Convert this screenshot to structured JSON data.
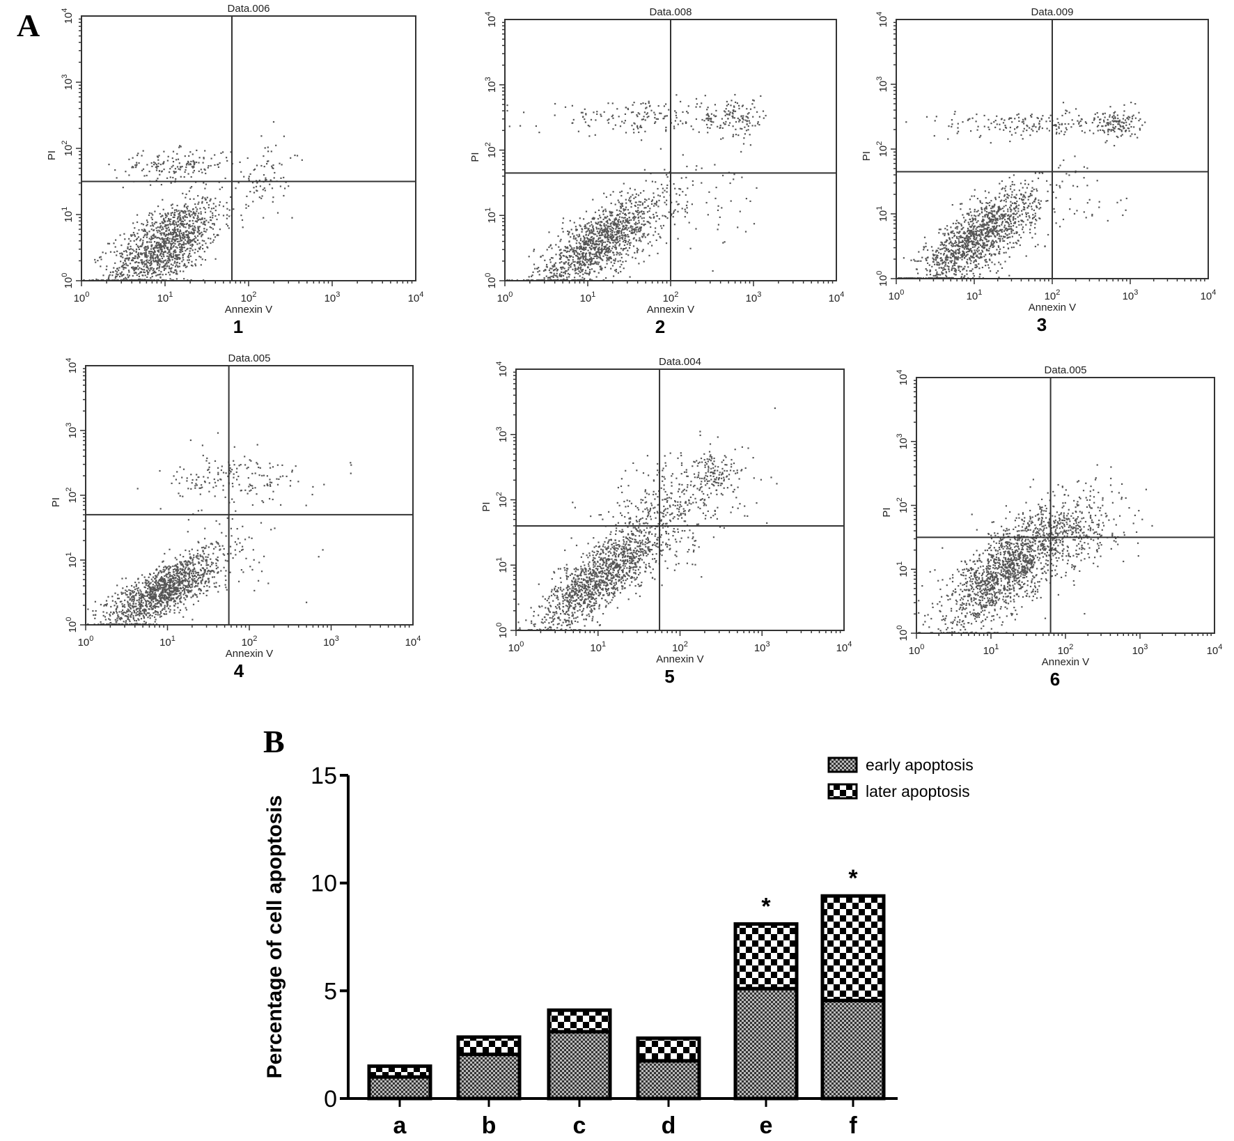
{
  "panel_labels": {
    "A": "A",
    "B": "B"
  },
  "chart_data": [
    {
      "type": "scatter",
      "panels": [
        {
          "title": "Data.006",
          "label": "1",
          "xlabel": "Annexin V",
          "ylabel": "PI",
          "gate_x_log": 1.8,
          "gate_y_log": 1.5,
          "clusters": [
            {
              "cx": 1.0,
              "cy": 0.55,
              "sx": 0.33,
              "sy": 0.35,
              "rho": 0.6,
              "n": 1300
            },
            {
              "cx": 1.1,
              "cy": 1.75,
              "sx": 0.35,
              "sy": 0.12,
              "rho": 0.2,
              "n": 160
            },
            {
              "cx": 2.2,
              "cy": 1.6,
              "sx": 0.15,
              "sy": 0.3,
              "rho": 0.3,
              "n": 80
            }
          ]
        },
        {
          "title": "Data.008",
          "label": "2",
          "xlabel": "Annexin V",
          "ylabel": "PI",
          "gate_x_log": 2.0,
          "gate_y_log": 1.65,
          "clusters": [
            {
              "cx": 1.15,
              "cy": 0.6,
              "sx": 0.4,
              "sy": 0.38,
              "rho": 0.75,
              "n": 1300
            },
            {
              "cx": 1.8,
              "cy": 2.5,
              "sx": 0.7,
              "sy": 0.12,
              "rho": 0.0,
              "n": 200
            },
            {
              "cx": 2.8,
              "cy": 2.5,
              "sx": 0.2,
              "sy": 0.15,
              "rho": 0.0,
              "n": 90
            },
            {
              "cx": 2.3,
              "cy": 1.2,
              "sx": 0.5,
              "sy": 0.4,
              "rho": 0.0,
              "n": 60
            }
          ]
        },
        {
          "title": "Data.009",
          "label": "3",
          "xlabel": "Annexin V",
          "ylabel": "PI",
          "gate_x_log": 2.0,
          "gate_y_log": 1.65,
          "clusters": [
            {
              "cx": 1.05,
              "cy": 0.65,
              "sx": 0.38,
              "sy": 0.38,
              "rho": 0.75,
              "n": 1300
            },
            {
              "cx": 1.7,
              "cy": 2.4,
              "sx": 0.6,
              "sy": 0.1,
              "rho": 0.0,
              "n": 170
            },
            {
              "cx": 2.8,
              "cy": 2.4,
              "sx": 0.15,
              "sy": 0.12,
              "rho": 0.0,
              "n": 130
            },
            {
              "cx": 2.2,
              "cy": 1.3,
              "sx": 0.4,
              "sy": 0.4,
              "rho": 0.0,
              "n": 60
            }
          ]
        },
        {
          "title": "Data.005",
          "label": "4",
          "xlabel": "Annexin V",
          "ylabel": "PI",
          "gate_x_log": 1.75,
          "gate_y_log": 1.7,
          "clusters": [
            {
              "cx": 0.95,
              "cy": 0.55,
              "sx": 0.35,
              "sy": 0.3,
              "rho": 0.75,
              "n": 1300
            },
            {
              "cx": 1.8,
              "cy": 2.25,
              "sx": 0.45,
              "sy": 0.2,
              "rho": 0.2,
              "n": 170
            },
            {
              "cx": 1.9,
              "cy": 1.2,
              "sx": 0.3,
              "sy": 0.4,
              "rho": 0.0,
              "n": 50
            }
          ]
        },
        {
          "title": "Data.004",
          "label": "5",
          "xlabel": "Annexin V",
          "ylabel": "PI",
          "gate_x_log": 1.75,
          "gate_y_log": 1.6,
          "clusters": [
            {
              "cx": 1.05,
              "cy": 0.85,
              "sx": 0.38,
              "sy": 0.42,
              "rho": 0.8,
              "n": 1300
            },
            {
              "cx": 1.9,
              "cy": 1.9,
              "sx": 0.45,
              "sy": 0.45,
              "rho": 0.4,
              "n": 400
            },
            {
              "cx": 2.4,
              "cy": 2.4,
              "sx": 0.15,
              "sy": 0.15,
              "rho": 0.0,
              "n": 90
            }
          ]
        },
        {
          "title": "Data.005",
          "label": "6",
          "xlabel": "Annexin V",
          "ylabel": "PI",
          "gate_x_log": 1.8,
          "gate_y_log": 1.5,
          "clusters": [
            {
              "cx": 1.2,
              "cy": 1.0,
              "sx": 0.4,
              "sy": 0.45,
              "rho": 0.7,
              "n": 1400
            },
            {
              "cx": 2.1,
              "cy": 1.6,
              "sx": 0.35,
              "sy": 0.35,
              "rho": 0.3,
              "n": 400
            }
          ]
        }
      ],
      "x_ticks": [
        "0",
        "1",
        "2",
        "3",
        "4"
      ],
      "y_ticks": [
        "0",
        "1",
        "2",
        "3",
        "4"
      ],
      "tick_base": "10",
      "xlim_log": [
        0,
        4
      ],
      "ylim_log": [
        0,
        4
      ]
    },
    {
      "type": "bar",
      "stacked": true,
      "categories": [
        "a",
        "b",
        "c",
        "d",
        "e",
        "f"
      ],
      "series": [
        {
          "name": "early apoptosis",
          "values": [
            1.0,
            2.05,
            3.1,
            1.75,
            5.1,
            4.55
          ]
        },
        {
          "name": "later apoptosis",
          "values": [
            0.5,
            0.8,
            1.0,
            1.05,
            3.0,
            4.85
          ]
        }
      ],
      "significance": [
        "",
        "",
        "",
        "",
        "*",
        "*"
      ],
      "ylabel": "Percentage of cell apoptosis",
      "xlabel": "",
      "ylim": [
        0,
        15
      ],
      "y_ticks": [
        "0",
        "5",
        "10",
        "15"
      ],
      "legend_position": "top-right"
    }
  ]
}
